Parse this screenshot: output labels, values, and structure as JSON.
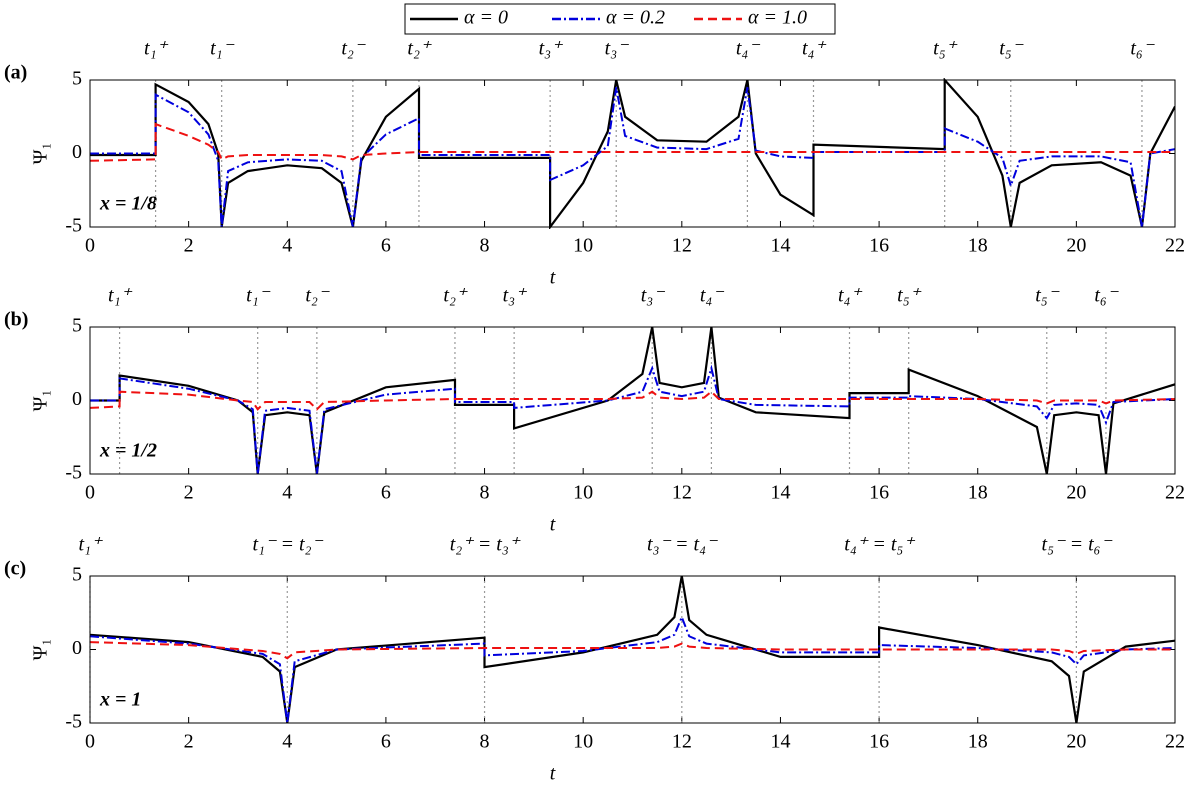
{
  "legend": [
    {
      "name": "α = 0",
      "color": "#000000",
      "dash": "solid"
    },
    {
      "name": "α = 0.2",
      "color": "#0000dd",
      "dash": "dashdot"
    },
    {
      "name": "α = 1.0",
      "color": "#ee1111",
      "dash": "dashed"
    }
  ],
  "chart_data": [
    {
      "type": "line",
      "panel": "(a)",
      "annotation": "x = 1/8",
      "y_label": "Ψ₁",
      "x_label": "t",
      "xlim": [
        0,
        22
      ],
      "ylim": [
        -5,
        5
      ],
      "xticks": [
        0,
        2,
        4,
        6,
        8,
        10,
        12,
        14,
        16,
        18,
        20,
        22
      ],
      "yticks": [
        -5,
        0,
        5
      ],
      "events": [
        {
          "x": 1.33,
          "label": "t₁⁺"
        },
        {
          "x": 2.67,
          "label": "t₁⁻"
        },
        {
          "x": 5.33,
          "label": "t₂⁻"
        },
        {
          "x": 6.67,
          "label": "t₂⁺"
        },
        {
          "x": 9.33,
          "label": "t₃⁺"
        },
        {
          "x": 10.67,
          "label": "t₃⁻"
        },
        {
          "x": 13.33,
          "label": "t₄⁻"
        },
        {
          "x": 14.67,
          "label": "t₄⁺"
        },
        {
          "x": 17.33,
          "label": "t₅⁺"
        },
        {
          "x": 18.67,
          "label": "t₅⁻"
        },
        {
          "x": 21.33,
          "label": "t₆⁻"
        }
      ],
      "x": [
        0,
        1.33,
        1.33,
        2.0,
        2.4,
        2.6,
        2.67,
        2.8,
        3.2,
        4,
        4.7,
        5.1,
        5.33,
        5.5,
        6.0,
        6.67,
        6.67,
        9.33,
        9.33,
        10.0,
        10.5,
        10.67,
        10.85,
        11.5,
        12.5,
        13.15,
        13.33,
        13.5,
        14.0,
        14.67,
        14.67,
        17.33,
        17.33,
        18.0,
        18.5,
        18.67,
        18.85,
        19.5,
        20.5,
        21.1,
        21.33,
        21.5,
        22
      ],
      "series": [
        {
          "values": [
            -0.1,
            -0.1,
            4.7,
            3.5,
            2.0,
            0,
            -5,
            -2,
            -1.2,
            -0.8,
            -1.0,
            -2,
            -5,
            -0.5,
            2.5,
            4.4,
            -0.3,
            -0.3,
            -5,
            -2,
            1.5,
            5,
            2.5,
            0.9,
            0.8,
            2.5,
            5,
            0,
            -2.8,
            -4.2,
            0.6,
            0.3,
            5,
            2.5,
            -1.5,
            -5,
            -2,
            -0.8,
            -0.6,
            -1.5,
            -5,
            0,
            3.2
          ]
        },
        {
          "values": [
            0,
            0,
            4.0,
            2.8,
            1.3,
            -0.5,
            -5,
            -1.2,
            -0.6,
            -0.4,
            -0.5,
            -1.2,
            -5,
            -0.3,
            1.3,
            2.4,
            -0.1,
            -0.1,
            -1.8,
            -0.8,
            0.5,
            4.5,
            1.2,
            0.4,
            0.3,
            1,
            4.5,
            0.2,
            -0.2,
            -0.3,
            0.1,
            0.1,
            1.7,
            0.8,
            -0.3,
            -2.2,
            -0.5,
            -0.2,
            -0.2,
            -0.6,
            -5,
            0,
            0.3
          ]
        },
        {
          "values": [
            -0.5,
            -0.4,
            2.0,
            1.2,
            0.6,
            0.1,
            -0.4,
            -0.2,
            -0.1,
            -0.1,
            -0.1,
            -0.2,
            -0.4,
            -0.1,
            0,
            0.1,
            0.1,
            0.1,
            0.1,
            0.1,
            0.1,
            0.1,
            0.1,
            0.1,
            0.1,
            0.1,
            0.1,
            0.1,
            0.1,
            0.1,
            0.1,
            0.1,
            0.1,
            0.1,
            0.1,
            0.1,
            0.1,
            0.1,
            0.1,
            0.1,
            0.1,
            0.1,
            0.1
          ]
        }
      ]
    },
    {
      "type": "line",
      "panel": "(b)",
      "annotation": "x = 1/2",
      "y_label": "Ψ₁",
      "x_label": "t",
      "xlim": [
        0,
        22
      ],
      "ylim": [
        -5,
        5
      ],
      "xticks": [
        0,
        2,
        4,
        6,
        8,
        10,
        12,
        14,
        16,
        18,
        20,
        22
      ],
      "yticks": [
        -5,
        0,
        5
      ],
      "events": [
        {
          "x": 0.6,
          "label": "t₁⁺"
        },
        {
          "x": 3.4,
          "label": "t₁⁻"
        },
        {
          "x": 4.6,
          "label": "t₂⁻"
        },
        {
          "x": 7.4,
          "label": "t₂⁺"
        },
        {
          "x": 8.6,
          "label": "t₃⁺"
        },
        {
          "x": 11.4,
          "label": "t₃⁻"
        },
        {
          "x": 12.6,
          "label": "t₄⁻"
        },
        {
          "x": 15.4,
          "label": "t₄⁺"
        },
        {
          "x": 16.6,
          "label": "t₅⁺"
        },
        {
          "x": 19.4,
          "label": "t₅⁻"
        },
        {
          "x": 20.6,
          "label": "t₆⁻"
        }
      ],
      "x": [
        0,
        0.6,
        0.6,
        2,
        3.0,
        3.3,
        3.4,
        3.55,
        4.0,
        4.45,
        4.6,
        4.75,
        6,
        7.4,
        7.4,
        8.6,
        8.6,
        10.5,
        11.2,
        11.4,
        11.55,
        12.0,
        12.45,
        12.6,
        12.75,
        13.5,
        15.4,
        15.4,
        16.6,
        16.6,
        18,
        19.2,
        19.4,
        19.55,
        20,
        20.45,
        20.6,
        20.75,
        22
      ],
      "series": [
        {
          "values": [
            0,
            0,
            1.7,
            1.0,
            0,
            -0.8,
            -5,
            -1,
            -0.8,
            -1,
            -5,
            -0.8,
            0.9,
            1.4,
            -0.3,
            -0.3,
            -1.9,
            0,
            1.8,
            5,
            1.2,
            0.9,
            1.2,
            5,
            0.2,
            -0.8,
            -1.2,
            0.5,
            0.5,
            2.1,
            0.3,
            -1.8,
            -5,
            -1.0,
            -0.8,
            -1.0,
            -5,
            -0.2,
            1.1
          ]
        },
        {
          "values": [
            0,
            0,
            1.5,
            0.8,
            0,
            -0.6,
            -5,
            -0.7,
            -0.5,
            -0.7,
            -5,
            -0.6,
            0.4,
            0.8,
            -0.1,
            -0.1,
            -0.5,
            0,
            0.6,
            2.2,
            0.6,
            0.3,
            0.6,
            2.2,
            0.1,
            -0.3,
            -0.4,
            0.2,
            0.2,
            0.3,
            0.1,
            -0.4,
            -1.2,
            -0.3,
            -0.2,
            -0.3,
            -1.5,
            -0.1,
            0.1
          ]
        },
        {
          "values": [
            -0.5,
            -0.4,
            0.6,
            0.4,
            0,
            -0.1,
            -0.6,
            -0.1,
            -0.1,
            -0.1,
            -0.6,
            -0.1,
            0,
            0.1,
            0.1,
            0.1,
            0.1,
            0.1,
            0.2,
            0.6,
            0.2,
            0.1,
            0.2,
            0.6,
            0.1,
            0.1,
            0.1,
            0.1,
            0.1,
            0.1,
            0.1,
            0,
            -0.2,
            0,
            0,
            0,
            -0.2,
            0,
            0.1
          ]
        }
      ]
    },
    {
      "type": "line",
      "panel": "(c)",
      "annotation": "x = 1",
      "y_label": "Ψ₁",
      "x_label": "t",
      "xlim": [
        0,
        22
      ],
      "ylim": [
        -5,
        5
      ],
      "xticks": [
        0,
        2,
        4,
        6,
        8,
        10,
        12,
        14,
        16,
        18,
        20,
        22
      ],
      "yticks": [
        -5,
        0,
        5
      ],
      "events": [
        {
          "x": 0,
          "label": "t₁⁺"
        },
        {
          "x": 4,
          "label": "t₁⁻ = t₂⁻"
        },
        {
          "x": 8,
          "label": "t₂⁺ = t₃⁺"
        },
        {
          "x": 12,
          "label": "t₃⁻ = t₄⁻"
        },
        {
          "x": 16,
          "label": "t₄⁺ = t₅⁺"
        },
        {
          "x": 20,
          "label": "t₅⁻ = t₆⁻"
        }
      ],
      "x": [
        0,
        2,
        3.5,
        3.85,
        4,
        4.15,
        5,
        8,
        8,
        10,
        11.5,
        11.85,
        12,
        12.15,
        12.5,
        14,
        16,
        16,
        18,
        19.5,
        19.85,
        20,
        20.15,
        21,
        22
      ],
      "series": [
        {
          "values": [
            1.0,
            0.5,
            -0.5,
            -1.5,
            -5,
            -1.2,
            0,
            0.8,
            -1.2,
            -0.2,
            1.0,
            2.2,
            5,
            2.0,
            1,
            -0.5,
            -0.5,
            1.5,
            0.3,
            -0.8,
            -1.8,
            -5,
            -1.5,
            0.2,
            0.6
          ]
        },
        {
          "values": [
            0.9,
            0.4,
            -0.3,
            -1.0,
            -5,
            -0.8,
            0,
            0.4,
            -0.4,
            -0.1,
            0.5,
            1.0,
            2.2,
            0.9,
            0.4,
            -0.2,
            -0.2,
            0.3,
            0.1,
            -0.2,
            -0.5,
            -1.0,
            -0.4,
            0,
            0.1
          ]
        },
        {
          "values": [
            0.5,
            0.3,
            -0.1,
            -0.3,
            -0.6,
            -0.2,
            0,
            0.1,
            0.1,
            0.1,
            0.1,
            0.2,
            0.4,
            0.2,
            0.1,
            0,
            0,
            0,
            0,
            0,
            -0.1,
            -0.3,
            -0.1,
            0,
            0
          ]
        }
      ]
    }
  ]
}
